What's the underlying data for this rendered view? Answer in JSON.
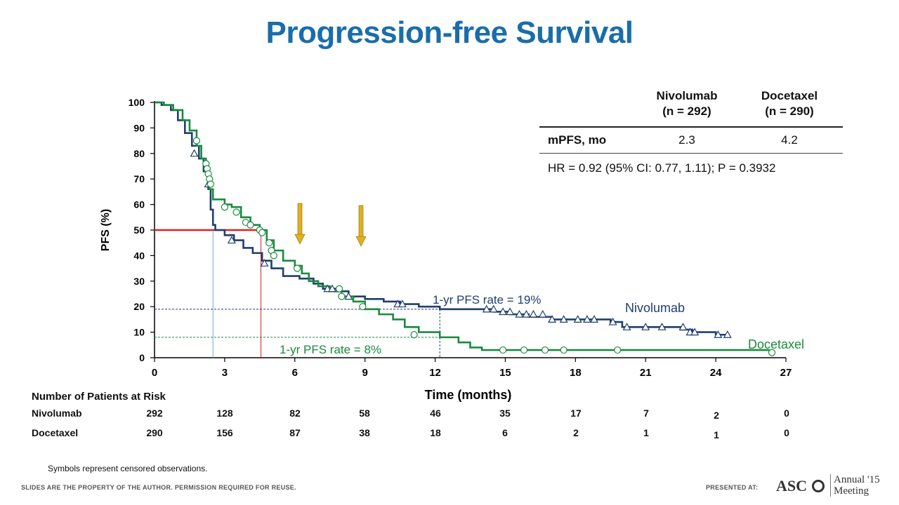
{
  "slide": {
    "title": "Progression-free Survival",
    "footnote": "Symbols represent censored observations.",
    "footer_left": "SLIDES ARE THE PROPERTY OF THE AUTHOR. PERMISSION REQUIRED FOR REUSE.",
    "footer_right": "PRESENTED AT:",
    "logo_text": "ASC",
    "meeting_line1": "Annual '15",
    "meeting_line2": "Meeting"
  },
  "stats_table": {
    "col1_line1": "Nivolumab",
    "col1_line2": "(n = 292)",
    "col2_line1": "Docetaxel",
    "col2_line2": "(n = 290)",
    "row_label": "mPFS, mo",
    "col1_value": "2.3",
    "col2_value": "4.2",
    "hr_text": "HR = 0.92 (95% CI: 0.77, 1.11); P = 0.3932"
  },
  "risk_table": {
    "title": "Number of Patients at Risk",
    "rows": [
      {
        "label": "Nivolumab",
        "values": [
          "292",
          "128",
          "82",
          "58",
          "46",
          "35",
          "17",
          "7",
          "2",
          "0"
        ]
      },
      {
        "label": "Docetaxel",
        "values": [
          "290",
          "156",
          "87",
          "38",
          "18",
          "6",
          "2",
          "1",
          "1",
          "0"
        ]
      }
    ]
  },
  "chart_data": {
    "type": "line",
    "xlabel": "Time (months)",
    "ylabel": "PFS (%)",
    "xlim": [
      0,
      27
    ],
    "ylim": [
      0,
      100
    ],
    "xticks": [
      0,
      3,
      6,
      9,
      12,
      15,
      18,
      21,
      24,
      27
    ],
    "yticks": [
      0,
      10,
      20,
      30,
      40,
      50,
      60,
      70,
      80,
      90,
      100
    ],
    "series": [
      {
        "name": "Nivolumab",
        "color": "#1f3f6e",
        "marker": "triangle",
        "points": [
          [
            0,
            100
          ],
          [
            0.3,
            99
          ],
          [
            0.7,
            97
          ],
          [
            1.0,
            93
          ],
          [
            1.3,
            88
          ],
          [
            1.6,
            83
          ],
          [
            1.9,
            78
          ],
          [
            2.1,
            73
          ],
          [
            2.3,
            66
          ],
          [
            2.4,
            58
          ],
          [
            2.5,
            52
          ],
          [
            2.6,
            50
          ],
          [
            3.0,
            48
          ],
          [
            3.4,
            46
          ],
          [
            3.8,
            43
          ],
          [
            4.2,
            41
          ],
          [
            4.6,
            38
          ],
          [
            5.0,
            35
          ],
          [
            5.5,
            32
          ],
          [
            6.2,
            31
          ],
          [
            6.8,
            29
          ],
          [
            7.2,
            27
          ],
          [
            7.8,
            26
          ],
          [
            8.3,
            24
          ],
          [
            9.0,
            23
          ],
          [
            9.8,
            22
          ],
          [
            10.5,
            21
          ],
          [
            11.3,
            20
          ],
          [
            12.2,
            19
          ],
          [
            13.5,
            19
          ],
          [
            14.5,
            18
          ],
          [
            15.2,
            17
          ],
          [
            16.0,
            16
          ],
          [
            17.0,
            15
          ],
          [
            18.5,
            15
          ],
          [
            19.5,
            14
          ],
          [
            20.0,
            12
          ],
          [
            21.0,
            12
          ],
          [
            22.5,
            11
          ],
          [
            23.0,
            10
          ],
          [
            24.0,
            9
          ],
          [
            24.5,
            9
          ]
        ],
        "censored": [
          [
            1.7,
            80
          ],
          [
            2.3,
            68
          ],
          [
            3.3,
            46
          ],
          [
            4.7,
            37
          ],
          [
            7.4,
            27
          ],
          [
            7.6,
            27
          ],
          [
            8.3,
            24
          ],
          [
            10.4,
            21
          ],
          [
            10.6,
            21
          ],
          [
            14.2,
            19
          ],
          [
            14.5,
            19
          ],
          [
            14.9,
            18
          ],
          [
            15.2,
            18
          ],
          [
            15.6,
            17
          ],
          [
            15.9,
            17
          ],
          [
            16.2,
            17
          ],
          [
            16.6,
            17
          ],
          [
            17.0,
            15
          ],
          [
            17.5,
            15
          ],
          [
            18.1,
            15
          ],
          [
            18.5,
            15
          ],
          [
            18.8,
            15
          ],
          [
            19.6,
            14
          ],
          [
            20.2,
            12
          ],
          [
            21.0,
            12
          ],
          [
            21.7,
            12
          ],
          [
            22.6,
            12
          ],
          [
            22.9,
            10
          ],
          [
            23.1,
            10
          ],
          [
            24.1,
            9
          ],
          [
            24.5,
            9
          ]
        ]
      },
      {
        "name": "Docetaxel",
        "color": "#1a8a3e",
        "marker": "circle",
        "points": [
          [
            0,
            100
          ],
          [
            0.4,
            99
          ],
          [
            0.8,
            97
          ],
          [
            1.2,
            93
          ],
          [
            1.5,
            89
          ],
          [
            1.8,
            83
          ],
          [
            2.0,
            78
          ],
          [
            2.2,
            72
          ],
          [
            2.35,
            66
          ],
          [
            2.5,
            62
          ],
          [
            3.0,
            60
          ],
          [
            3.3,
            59
          ],
          [
            3.7,
            55
          ],
          [
            4.1,
            52
          ],
          [
            4.5,
            50
          ],
          [
            4.8,
            46
          ],
          [
            5.1,
            42
          ],
          [
            5.5,
            38
          ],
          [
            6.0,
            36
          ],
          [
            6.3,
            33
          ],
          [
            6.6,
            30
          ],
          [
            7.0,
            28
          ],
          [
            7.5,
            26
          ],
          [
            8.0,
            24
          ],
          [
            8.5,
            22
          ],
          [
            9.0,
            19
          ],
          [
            9.6,
            17
          ],
          [
            10.2,
            15
          ],
          [
            10.7,
            12
          ],
          [
            11.3,
            10
          ],
          [
            12.2,
            8
          ],
          [
            13.0,
            6
          ],
          [
            13.5,
            4
          ],
          [
            14.0,
            3
          ],
          [
            15.0,
            3
          ],
          [
            18.0,
            3
          ],
          [
            24.0,
            3
          ],
          [
            26.3,
            3
          ]
        ],
        "censored": [
          [
            1.8,
            85
          ],
          [
            2.2,
            76
          ],
          [
            2.25,
            74
          ],
          [
            2.3,
            72
          ],
          [
            2.35,
            70
          ],
          [
            2.4,
            68
          ],
          [
            3.0,
            59
          ],
          [
            3.5,
            57
          ],
          [
            3.9,
            53
          ],
          [
            4.1,
            52
          ],
          [
            4.5,
            50
          ],
          [
            4.6,
            49
          ],
          [
            4.9,
            45
          ],
          [
            5.0,
            42
          ],
          [
            5.1,
            40
          ],
          [
            6.1,
            35
          ],
          [
            7.9,
            27
          ],
          [
            8.0,
            24
          ],
          [
            8.9,
            20
          ],
          [
            11.1,
            9
          ],
          [
            14.9,
            3
          ],
          [
            15.8,
            3
          ],
          [
            16.7,
            3
          ],
          [
            17.5,
            3
          ],
          [
            19.8,
            3
          ],
          [
            26.4,
            2
          ]
        ]
      }
    ],
    "annotations": [
      {
        "text": "1-yr PFS rate = 19%",
        "x": 12.2,
        "y": 19
      },
      {
        "text": "1-yr PFS rate = 8%",
        "x": 12.2,
        "y": 8
      },
      {
        "text": "Nivolumab",
        "series_label": true
      },
      {
        "text": "Docetaxel",
        "series_label": true
      }
    ],
    "median_lines": [
      {
        "series": "Nivolumab",
        "x": 2.3,
        "y": 50,
        "color": "#6fa8dc"
      },
      {
        "series": "Docetaxel",
        "x": 4.2,
        "y": 50,
        "color": "#e02020"
      }
    ],
    "arrows_at_x": [
      6.3,
      8.9
    ],
    "arrow_color": "#e0b020"
  }
}
